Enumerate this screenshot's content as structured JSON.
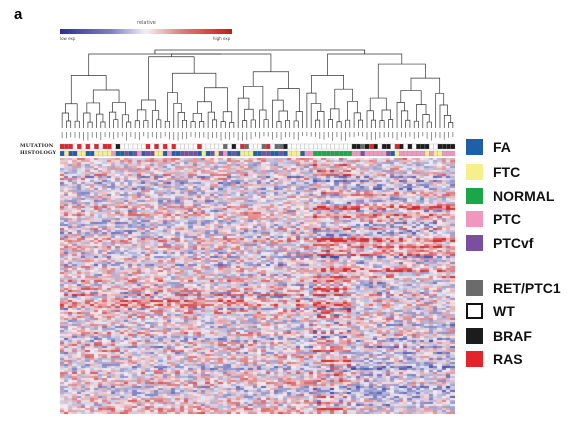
{
  "panel_label": "a",
  "color_key": {
    "title": "relative",
    "min_label": "low  exp",
    "max_label": "high  exp",
    "low_color": "#2c2c9a",
    "mid_color": "#f4f0f4",
    "high_color": "#c81818"
  },
  "row_labels": {
    "mutation": "MUTATION",
    "histology": "HISTOLOGY"
  },
  "legend": {
    "histology": [
      {
        "label": "FA",
        "color": "#1f5fa8"
      },
      {
        "label": "FTC",
        "color": "#f6f08c"
      },
      {
        "label": "NORMAL",
        "color": "#1aa74a"
      },
      {
        "label": "PTC",
        "color": "#ef97bf"
      },
      {
        "label": "PTCvf",
        "color": "#7b4fa0"
      }
    ],
    "mutation": [
      {
        "label": "RET/PTC1",
        "color": "#6b6b6b"
      },
      {
        "label": "WT",
        "color": "#ffffff"
      },
      {
        "label": "BRAF",
        "color": "#1c1c1c"
      },
      {
        "label": "RAS",
        "color": "#e2252b"
      }
    ]
  },
  "heatmap": {
    "samples": 92,
    "genes": 128,
    "colors": {
      "blue": "#3c46a8",
      "white": "#f2eef3",
      "red": "#d42a2a"
    }
  }
}
